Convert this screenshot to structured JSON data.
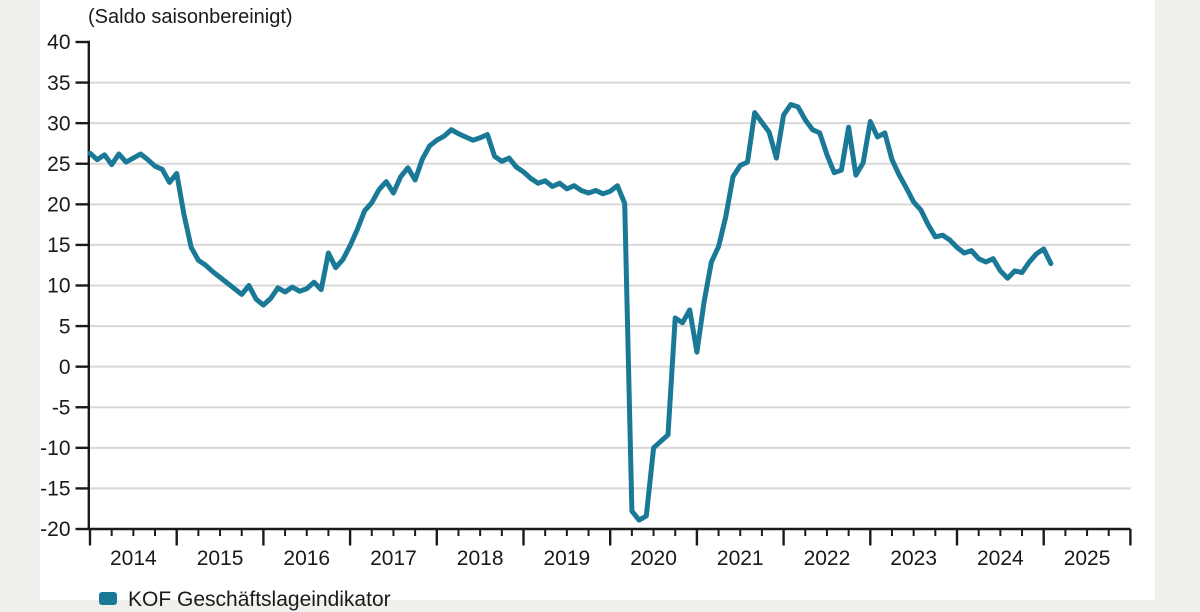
{
  "colors": {
    "page_background": "#f0efec",
    "sheet_background": "#ffffff",
    "axis": "#1a1a1a",
    "grid": "#d8d8d8",
    "series": "#1a7996"
  },
  "header": {
    "axis_unit_label": "(Saldo saisonbereinigt)"
  },
  "legend": {
    "items": [
      {
        "label": "KOF Geschäftslageindikator",
        "swatch_color": "#1a7996"
      }
    ]
  },
  "chart_data": {
    "type": "line",
    "ylabel": "(Saldo saisonbereinigt)",
    "ylim": [
      -20,
      40
    ],
    "ytick_step": 5,
    "y_tick_labels": [
      "40",
      "35",
      "30",
      "25",
      "20",
      "15",
      "10",
      "5",
      "0",
      "-5",
      "-10",
      "-15",
      "-20"
    ],
    "grid": true,
    "legend_position": "bottom-left",
    "x_axis": {
      "start_year": 2014,
      "axis_end_year": 2026,
      "tick_labels": [
        "2014",
        "2015",
        "2016",
        "2017",
        "2018",
        "2019",
        "2020",
        "2021",
        "2022",
        "2023",
        "2024",
        "2025"
      ],
      "minor_ticks_per_year": 4
    },
    "series": [
      {
        "name": "KOF Geschäftslageindikator",
        "color": "#1a7996",
        "frequency": "monthly",
        "start": "2014-01",
        "values": [
          26.3,
          25.5,
          26.1,
          24.9,
          26.2,
          25.2,
          25.7,
          26.2,
          25.5,
          24.7,
          24.3,
          22.7,
          23.8,
          18.8,
          14.7,
          13.1,
          12.5,
          11.7,
          11.0,
          10.3,
          9.6,
          8.9,
          10.0,
          8.3,
          7.6,
          8.4,
          9.7,
          9.2,
          9.8,
          9.3,
          9.6,
          10.4,
          9.5,
          14.0,
          12.2,
          13.2,
          14.9,
          16.9,
          19.2,
          20.2,
          21.8,
          22.8,
          21.4,
          23.4,
          24.5,
          23.0,
          25.6,
          27.2,
          27.9,
          28.4,
          29.2,
          28.7,
          28.3,
          27.9,
          28.2,
          28.6,
          25.9,
          25.3,
          25.7,
          24.6,
          24.0,
          23.2,
          22.6,
          22.9,
          22.2,
          22.6,
          21.9,
          22.3,
          21.7,
          21.4,
          21.7,
          21.3,
          21.6,
          22.3,
          20.1,
          -17.8,
          -18.9,
          -18.4,
          -10.0,
          -9.2,
          -8.4,
          6.0,
          5.4,
          7.0,
          1.8,
          8.0,
          12.9,
          14.8,
          18.5,
          23.4,
          24.8,
          25.2,
          31.3,
          30.1,
          28.9,
          25.7,
          31.0,
          32.3,
          32.0,
          30.4,
          29.2,
          28.8,
          26.1,
          23.9,
          24.2,
          29.5,
          23.6,
          25.1,
          30.2,
          28.3,
          28.8,
          25.5,
          23.6,
          22.0,
          20.3,
          19.3,
          17.5,
          16.0,
          16.2,
          15.6,
          14.7,
          14.0,
          14.3,
          13.3,
          12.9,
          13.3,
          11.8,
          10.9,
          11.8,
          11.6,
          12.9,
          13.9,
          14.5,
          12.7
        ]
      }
    ]
  }
}
